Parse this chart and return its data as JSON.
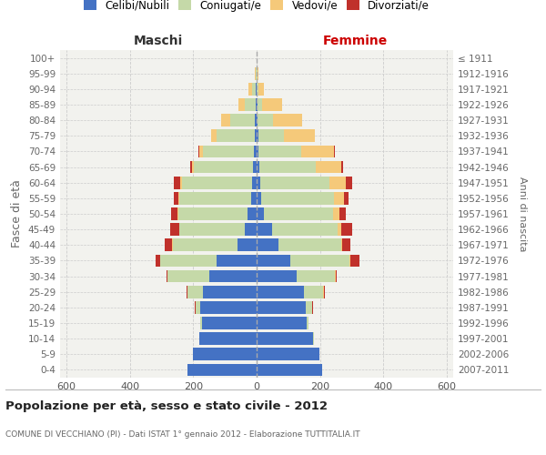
{
  "age_groups": [
    "0-4",
    "5-9",
    "10-14",
    "15-19",
    "20-24",
    "25-29",
    "30-34",
    "35-39",
    "40-44",
    "45-49",
    "50-54",
    "55-59",
    "60-64",
    "65-69",
    "70-74",
    "75-79",
    "80-84",
    "85-89",
    "90-94",
    "95-99",
    "100+"
  ],
  "birth_years": [
    "2007-2011",
    "2002-2006",
    "1997-2001",
    "1992-1996",
    "1987-1991",
    "1982-1986",
    "1977-1981",
    "1972-1976",
    "1967-1971",
    "1962-1966",
    "1957-1961",
    "1952-1956",
    "1947-1951",
    "1942-1946",
    "1937-1941",
    "1932-1936",
    "1927-1931",
    "1922-1926",
    "1917-1921",
    "1912-1916",
    "≤ 1911"
  ],
  "colors": {
    "celibi": "#4472C4",
    "coniugati": "#C5D9A8",
    "vedovi": "#F5C97A",
    "divorziati": "#C0312B"
  },
  "males": {
    "celibi": [
      218,
      202,
      180,
      172,
      178,
      170,
      150,
      125,
      60,
      38,
      28,
      18,
      15,
      12,
      10,
      6,
      5,
      4,
      3,
      1,
      1
    ],
    "coniugati": [
      0,
      0,
      2,
      5,
      15,
      48,
      130,
      178,
      205,
      205,
      218,
      225,
      220,
      185,
      160,
      120,
      78,
      32,
      10,
      3,
      0
    ],
    "vedovi": [
      0,
      0,
      0,
      0,
      0,
      0,
      0,
      2,
      2,
      2,
      3,
      3,
      5,
      6,
      10,
      18,
      28,
      20,
      12,
      3,
      0
    ],
    "divorziati": [
      0,
      0,
      0,
      0,
      1,
      2,
      5,
      14,
      22,
      28,
      20,
      14,
      20,
      6,
      3,
      0,
      0,
      0,
      0,
      0,
      0
    ]
  },
  "females": {
    "nubili": [
      208,
      198,
      178,
      158,
      155,
      148,
      125,
      105,
      68,
      48,
      22,
      15,
      12,
      8,
      6,
      5,
      4,
      2,
      1,
      1,
      0
    ],
    "coniugate": [
      0,
      0,
      2,
      6,
      20,
      62,
      122,
      188,
      198,
      208,
      218,
      228,
      218,
      178,
      135,
      82,
      48,
      15,
      5,
      2,
      0
    ],
    "vedove": [
      0,
      0,
      0,
      0,
      1,
      2,
      2,
      3,
      5,
      12,
      22,
      32,
      52,
      82,
      102,
      98,
      92,
      62,
      18,
      3,
      0
    ],
    "divorziate": [
      0,
      0,
      0,
      0,
      1,
      3,
      5,
      28,
      24,
      32,
      20,
      14,
      20,
      5,
      3,
      0,
      0,
      0,
      0,
      0,
      0
    ]
  },
  "title": "Popolazione per età, sesso e stato civile - 2012",
  "subtitle": "COMUNE DI VECCHIANO (PI) - Dati ISTAT 1° gennaio 2012 - Elaborazione TUTTITALIA.IT",
  "xlabel_left": "Maschi",
  "xlabel_right": "Femmine",
  "ylabel": "Fasce di età",
  "ylabel_right": "Anni di nascita",
  "xlim": 620,
  "legend_labels": [
    "Celibi/Nubili",
    "Coniugati/e",
    "Vedovi/e",
    "Divorziati/e"
  ],
  "bg_color": "#F2F2EE",
  "grid_color": "#CCCCCC",
  "bar_height": 0.8,
  "xticks": [
    -600,
    -400,
    -200,
    0,
    200,
    400,
    600
  ]
}
